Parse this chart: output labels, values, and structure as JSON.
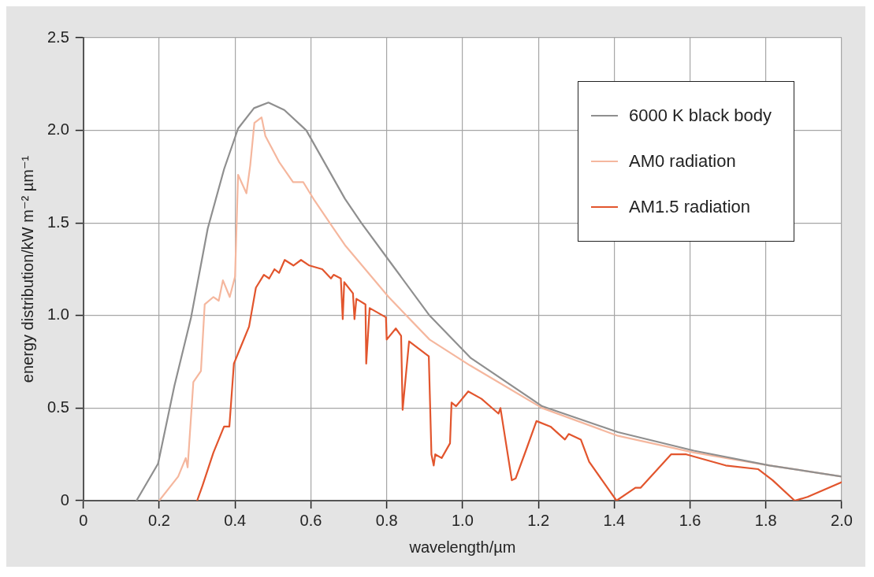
{
  "chart_data": {
    "type": "line",
    "xlabel": "wavelength/µm",
    "ylabel": "energy distribution/kW m⁻² µm⁻¹",
    "xlim": [
      0,
      2
    ],
    "ylim": [
      0,
      2.5
    ],
    "xticks": [
      0,
      0.2,
      0.4,
      0.6,
      0.8,
      {
        "value": 1,
        "label": "1.0"
      },
      1.2,
      1.4,
      1.6,
      1.8,
      {
        "value": 2,
        "label": "2.0"
      }
    ],
    "yticks": [
      0,
      0.5,
      {
        "value": 1,
        "label": "1.0"
      },
      1.5,
      {
        "value": 2,
        "label": "2.0"
      },
      2.5
    ],
    "grid": true,
    "legend": "top right",
    "marker": "none",
    "line_style": "solid",
    "series": [
      {
        "name": "6000 K black body",
        "color": "#8f8f8f",
        "x": [
          0.14,
          0.197,
          0.24,
          0.284,
          0.328,
          0.371,
          0.408,
          0.45,
          0.488,
          0.53,
          0.588,
          0.69,
          0.733,
          0.805,
          0.913,
          1.022,
          1.21,
          1.41,
          1.61,
          1.81,
          2.0
        ],
        "values": [
          0,
          0.2,
          0.62,
          0.99,
          1.47,
          1.79,
          2.01,
          2.12,
          2.15,
          2.11,
          2.0,
          1.63,
          1.5,
          1.3,
          1.0,
          0.77,
          0.51,
          0.37,
          0.27,
          0.19,
          0.13
        ]
      },
      {
        "name": "AM0 radiation",
        "color": "#f5b79e",
        "x": [
          0.2,
          0.25,
          0.27,
          0.275,
          0.29,
          0.31,
          0.32,
          0.343,
          0.357,
          0.368,
          0.386,
          0.4,
          0.408,
          0.43,
          0.44,
          0.451,
          0.47,
          0.48,
          0.516,
          0.553,
          0.58,
          0.61,
          0.66,
          0.69,
          0.805,
          0.913,
          1.02,
          1.21,
          1.41,
          1.61,
          1.81,
          2.0
        ],
        "values": [
          0,
          0.13,
          0.23,
          0.18,
          0.64,
          0.7,
          1.06,
          1.1,
          1.08,
          1.19,
          1.1,
          1.21,
          1.76,
          1.66,
          1.81,
          2.04,
          2.07,
          1.97,
          1.83,
          1.72,
          1.72,
          1.62,
          1.47,
          1.38,
          1.1,
          0.87,
          0.73,
          0.5,
          0.35,
          0.26,
          0.19,
          0.13
        ]
      },
      {
        "name": "AM1.5 radiation",
        "color": "#e2552d",
        "x": [
          0.3,
          0.314,
          0.343,
          0.371,
          0.385,
          0.397,
          0.415,
          0.437,
          0.455,
          0.476,
          0.49,
          0.504,
          0.516,
          0.531,
          0.554,
          0.574,
          0.596,
          0.63,
          0.653,
          0.66,
          0.679,
          0.684,
          0.688,
          0.711,
          0.715,
          0.72,
          0.744,
          0.746,
          0.755,
          0.798,
          0.8,
          0.824,
          0.838,
          0.842,
          0.859,
          0.911,
          0.918,
          0.924,
          0.928,
          0.945,
          0.967,
          0.971,
          0.983,
          1.015,
          1.05,
          1.095,
          1.1,
          1.13,
          1.14,
          1.167,
          1.195,
          1.232,
          1.27,
          1.28,
          1.312,
          1.334,
          1.406,
          1.456,
          1.47,
          1.55,
          1.59,
          1.694,
          1.78,
          1.818,
          1.876,
          1.91,
          2.0
        ],
        "values": [
          0,
          0.08,
          0.26,
          0.4,
          0.4,
          0.74,
          0.83,
          0.94,
          1.15,
          1.22,
          1.2,
          1.25,
          1.23,
          1.3,
          1.27,
          1.3,
          1.27,
          1.25,
          1.2,
          1.22,
          1.2,
          0.98,
          1.18,
          1.12,
          0.98,
          1.09,
          1.06,
          0.74,
          1.04,
          0.99,
          0.87,
          0.93,
          0.89,
          0.49,
          0.86,
          0.78,
          0.25,
          0.19,
          0.25,
          0.23,
          0.31,
          0.53,
          0.51,
          0.59,
          0.55,
          0.47,
          0.5,
          0.11,
          0.12,
          0.27,
          0.43,
          0.4,
          0.33,
          0.36,
          0.33,
          0.21,
          0,
          0.07,
          0.07,
          0.25,
          0.25,
          0.19,
          0.17,
          0.11,
          0,
          0.02,
          0.1
        ]
      }
    ]
  }
}
